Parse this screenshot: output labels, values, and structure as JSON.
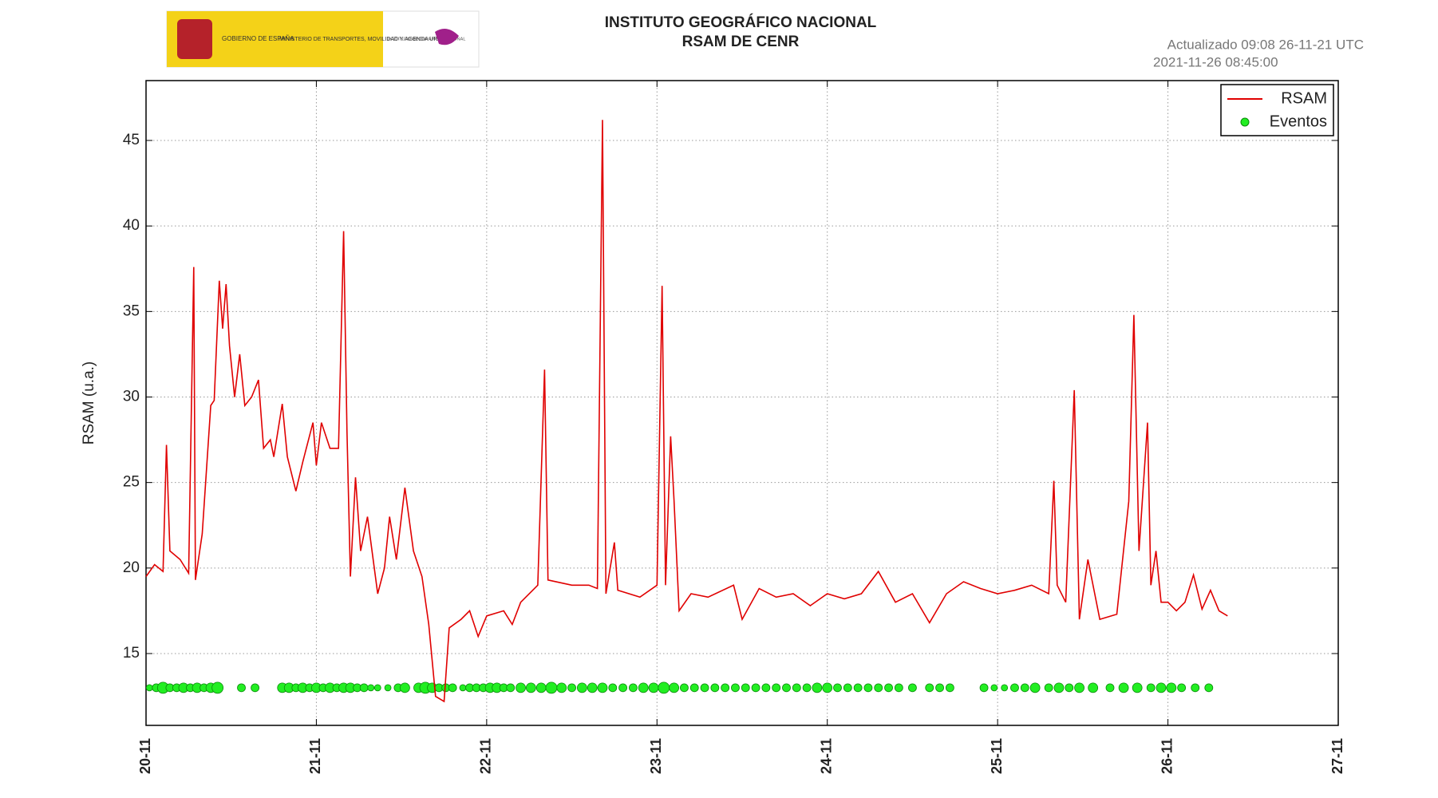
{
  "logo": {
    "country": "GOBIERNO DE ESPAÑA",
    "ministry": "MINISTERIO DE TRANSPORTES, MOVILIDAD Y AGENDA URBANA",
    "institute": "INSTITUTO GEOGRÁFICO NACIONAL"
  },
  "chart_data": {
    "type": "line",
    "title": "INSTITUTO GEOGRÁFICO NACIONAL",
    "subtitle": "RSAM DE CENR",
    "updated": "Actualizado 09:08 26-11-21 UTC",
    "timestamp": "2021-11-26 08:45:00",
    "y_label": "RSAM (u.a.)",
    "xlim": [
      0,
      7
    ],
    "ylim": [
      10.8,
      48.5
    ],
    "xticks": [
      {
        "value": 0,
        "label": "20-11"
      },
      {
        "value": 1,
        "label": "21-11"
      },
      {
        "value": 2,
        "label": "22-11"
      },
      {
        "value": 3,
        "label": "23-11"
      },
      {
        "value": 4,
        "label": "24-11"
      },
      {
        "value": 5,
        "label": "25-11"
      },
      {
        "value": 6,
        "label": "26-11"
      },
      {
        "value": 7,
        "label": "27-11"
      }
    ],
    "yticks": [
      15,
      20,
      25,
      30,
      35,
      40,
      45
    ],
    "grid": true,
    "legend": "upper right",
    "series": [
      {
        "name": "RSAM",
        "color": "#e00000",
        "x": [
          0,
          0.05,
          0.1,
          0.12,
          0.14,
          0.2,
          0.25,
          0.28,
          0.29,
          0.33,
          0.38,
          0.4,
          0.43,
          0.45,
          0.47,
          0.49,
          0.52,
          0.55,
          0.58,
          0.62,
          0.66,
          0.69,
          0.73,
          0.75,
          0.8,
          0.83,
          0.88,
          0.92,
          0.98,
          1.0,
          1.03,
          1.08,
          1.13,
          1.16,
          1.18,
          1.2,
          1.23,
          1.26,
          1.3,
          1.36,
          1.4,
          1.43,
          1.47,
          1.52,
          1.57,
          1.62,
          1.66,
          1.7,
          1.75,
          1.78,
          1.85,
          1.9,
          1.95,
          2.0,
          2.1,
          2.15,
          2.2,
          2.3,
          2.34,
          2.36,
          2.5,
          2.6,
          2.65,
          2.68,
          2.7,
          2.75,
          2.77,
          2.9,
          3.0,
          3.03,
          3.05,
          3.08,
          3.1,
          3.13,
          3.2,
          3.3,
          3.45,
          3.5,
          3.6,
          3.7,
          3.8,
          3.9,
          4.0,
          4.1,
          4.2,
          4.3,
          4.4,
          4.5,
          4.6,
          4.7,
          4.8,
          4.9,
          5.0,
          5.1,
          5.2,
          5.3,
          5.33,
          5.35,
          5.4,
          5.45,
          5.48,
          5.53,
          5.6,
          5.7,
          5.77,
          5.8,
          5.83,
          5.88,
          5.9,
          5.93,
          5.96,
          6.0,
          6.05,
          6.1,
          6.15,
          6.2,
          6.25,
          6.3,
          6.35
        ],
        "values": [
          19.5,
          20.2,
          19.8,
          27.2,
          21,
          20.5,
          19.7,
          37.6,
          19.3,
          22,
          29.5,
          29.8,
          36.8,
          34,
          36.6,
          33,
          30,
          32.5,
          29.5,
          30,
          31,
          27,
          27.5,
          26.5,
          29.6,
          26.5,
          24.5,
          26.2,
          28.5,
          26,
          28.5,
          27,
          27,
          39.7,
          28,
          19.5,
          25.3,
          21,
          23,
          18.5,
          20,
          23,
          20.5,
          24.7,
          21,
          19.5,
          16.7,
          12.5,
          12.2,
          16.5,
          17,
          17.5,
          16,
          17.2,
          17.5,
          16.7,
          18,
          19,
          31.6,
          19.3,
          19,
          19,
          18.8,
          46.2,
          18.5,
          21.5,
          18.7,
          18.3,
          19,
          36.5,
          19,
          27.7,
          24,
          17.5,
          18.5,
          18.3,
          19,
          17,
          18.8,
          18.3,
          18.5,
          17.8,
          18.5,
          18.2,
          18.5,
          19.8,
          18,
          18.5,
          16.8,
          18.5,
          19.2,
          18.8,
          18.5,
          18.7,
          19,
          18.5,
          25.1,
          19,
          18,
          30.4,
          17,
          20.5,
          17,
          17.3,
          23.9,
          34.8,
          21,
          28.5,
          19,
          21,
          18,
          18,
          17.5,
          18,
          19.6,
          17.6,
          18.7,
          17.5,
          17.2
        ]
      },
      {
        "name": "Eventos",
        "color": "#22ee22",
        "marker": "circle",
        "x": [
          0.02,
          0.06,
          0.1,
          0.14,
          0.18,
          0.22,
          0.26,
          0.3,
          0.34,
          0.38,
          0.42,
          0.56,
          0.64,
          0.8,
          0.84,
          0.88,
          0.92,
          0.96,
          1.0,
          1.04,
          1.08,
          1.12,
          1.16,
          1.2,
          1.24,
          1.28,
          1.32,
          1.36,
          1.42,
          1.48,
          1.52,
          1.6,
          1.64,
          1.68,
          1.72,
          1.76,
          1.8,
          1.86,
          1.9,
          1.94,
          1.98,
          2.02,
          2.06,
          2.1,
          2.14,
          2.2,
          2.26,
          2.32,
          2.38,
          2.44,
          2.5,
          2.56,
          2.62,
          2.68,
          2.74,
          2.8,
          2.86,
          2.92,
          2.98,
          3.04,
          3.1,
          3.16,
          3.22,
          3.28,
          3.34,
          3.4,
          3.46,
          3.52,
          3.58,
          3.64,
          3.7,
          3.76,
          3.82,
          3.88,
          3.94,
          4.0,
          4.06,
          4.12,
          4.18,
          4.24,
          4.3,
          4.36,
          4.42,
          4.5,
          4.6,
          4.66,
          4.72,
          4.92,
          4.98,
          5.04,
          5.1,
          5.16,
          5.22,
          5.3,
          5.36,
          5.42,
          5.48,
          5.56,
          5.66,
          5.74,
          5.82,
          5.9,
          5.96,
          6.02,
          6.08,
          6.16,
          6.24
        ],
        "values": [
          13,
          13,
          13,
          13,
          13,
          13,
          13,
          13,
          13,
          13,
          13,
          13,
          13,
          13,
          13,
          13,
          13,
          13,
          13,
          13,
          13,
          13,
          13,
          13,
          13,
          13,
          13,
          13,
          13,
          13,
          13,
          13,
          13,
          13,
          13,
          13,
          13,
          13,
          13,
          13,
          13,
          13,
          13,
          13,
          13,
          13,
          13,
          13,
          13,
          13,
          13,
          13,
          13,
          13,
          13,
          13,
          13,
          13,
          13,
          13,
          13,
          13,
          13,
          13,
          13,
          13,
          13,
          13,
          13,
          13,
          13,
          13,
          13,
          13,
          13,
          13,
          13,
          13,
          13,
          13,
          13,
          13,
          13,
          13,
          13,
          13,
          13,
          13,
          13,
          13,
          13,
          13,
          13,
          13,
          13,
          13,
          13,
          13,
          13,
          13,
          13,
          13,
          13,
          13,
          13,
          13,
          13
        ],
        "sizes": [
          4,
          5,
          7,
          5,
          5,
          6,
          5,
          6,
          5,
          6,
          7,
          5,
          5,
          6,
          6,
          5,
          6,
          5,
          6,
          5,
          6,
          5,
          6,
          6,
          5,
          5,
          4,
          4,
          4,
          5,
          6,
          6,
          7,
          6,
          5,
          5,
          5,
          4,
          5,
          5,
          5,
          6,
          6,
          5,
          5,
          6,
          6,
          6,
          7,
          6,
          5,
          6,
          6,
          6,
          5,
          5,
          5,
          6,
          6,
          7,
          6,
          5,
          5,
          5,
          5,
          5,
          5,
          5,
          5,
          5,
          5,
          5,
          5,
          5,
          6,
          6,
          5,
          5,
          5,
          5,
          5,
          5,
          5,
          5,
          5,
          5,
          5,
          5,
          4,
          4,
          5,
          5,
          6,
          5,
          6,
          5,
          6,
          6,
          5,
          6,
          6,
          5,
          6,
          6,
          5,
          5,
          5
        ]
      }
    ]
  }
}
